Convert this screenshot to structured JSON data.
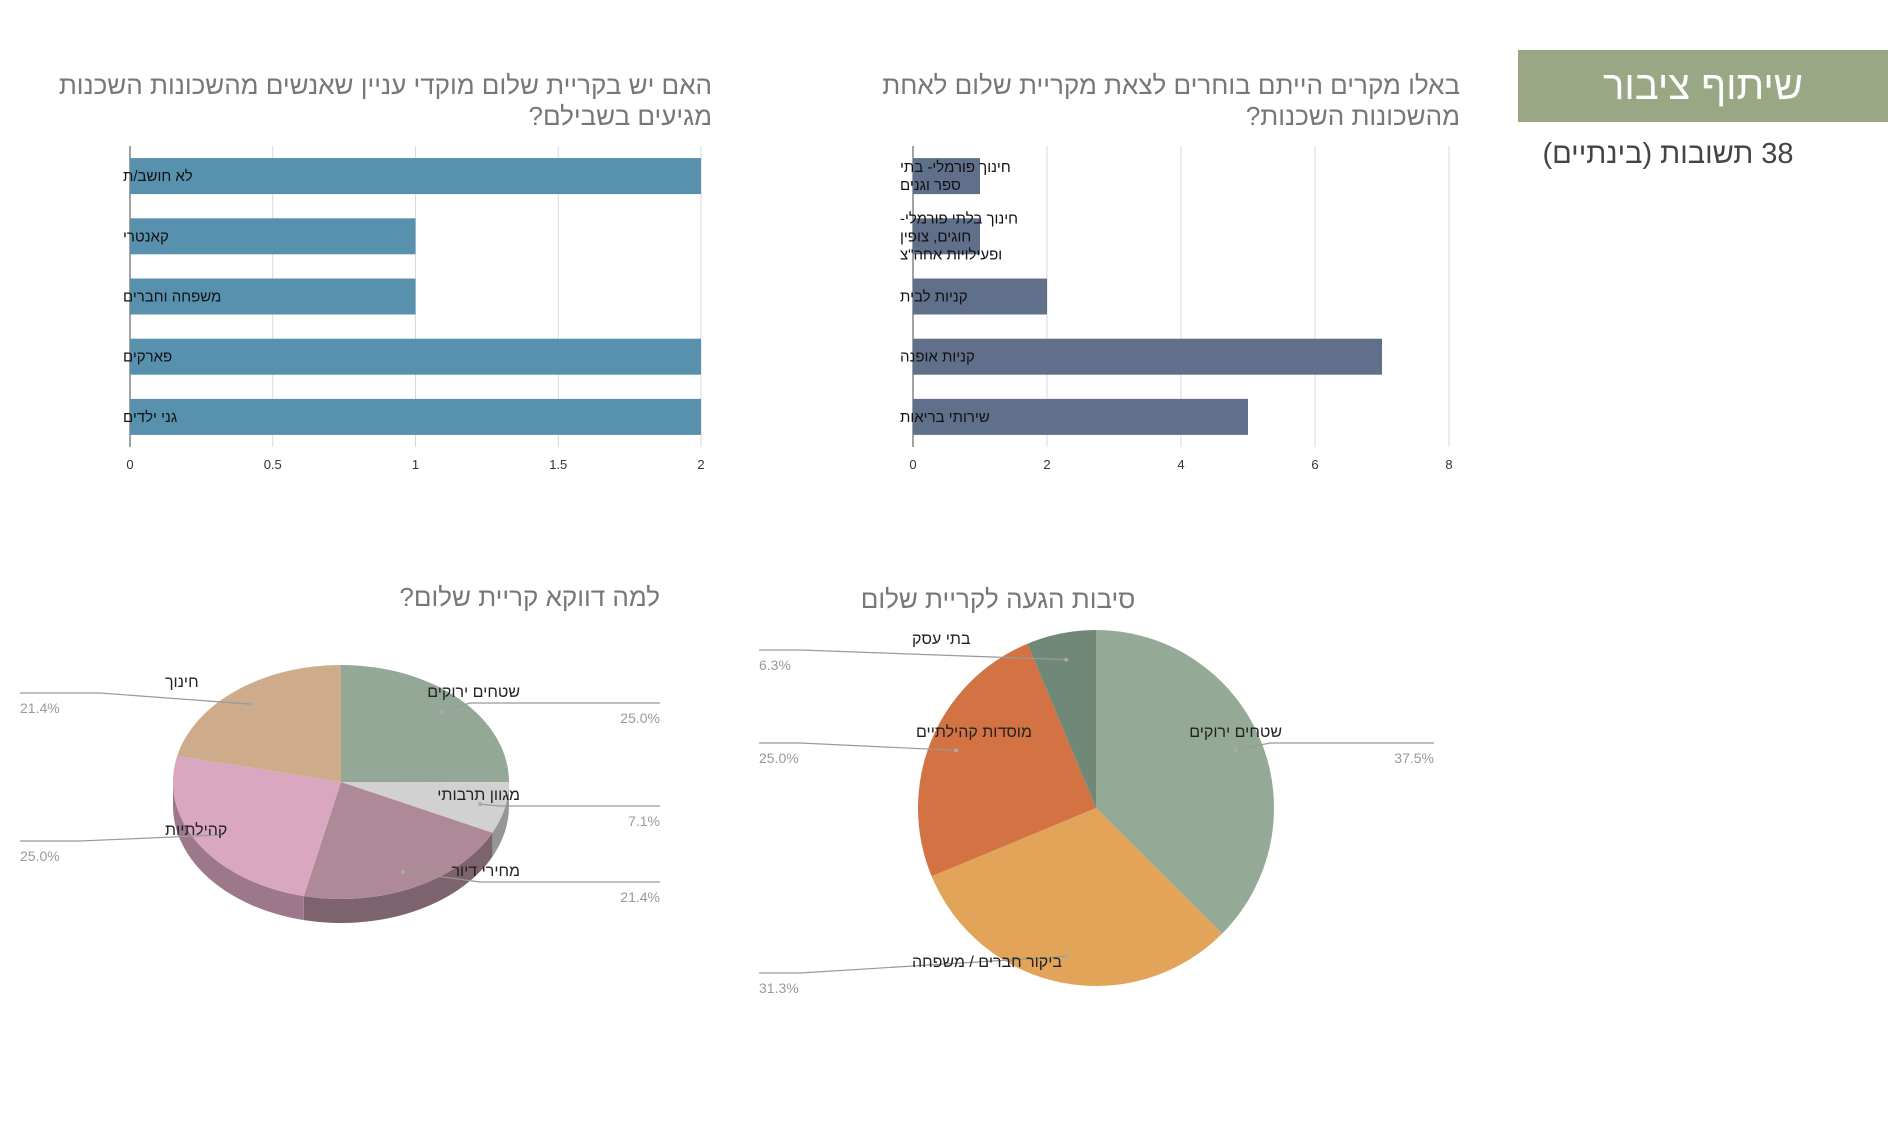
{
  "header": {
    "banner": "שיתוף ציבור",
    "responses": "38 תשובות (בינתיים)"
  },
  "colors": {
    "banner_bg": "#9aa784",
    "bar_left": "#5891ad",
    "bar_right": "#60708b"
  },
  "chart_data": [
    {
      "type": "bar",
      "orientation": "horizontal",
      "title": "האם יש בקריית שלום מוקדי עניין שאנשים מהשכונות השכנות מגיעים בשבילם?",
      "categories": [
        "לא חושב/ת",
        "קאנטרי",
        "משפחה וחברים",
        "פארקים",
        "גני ילדים"
      ],
      "values": [
        2,
        1,
        1,
        2,
        2
      ],
      "xlim": [
        0,
        2
      ],
      "xticks": [
        "0",
        "0.5",
        "1",
        "1.5",
        "2"
      ],
      "grid": true,
      "color": "#5891ad"
    },
    {
      "type": "bar",
      "orientation": "horizontal",
      "title": "באלו מקרים הייתם בוחרים לצאת מקריית שלום לאחת מהשכונות השכנות?",
      "categories": [
        "חינוך פורמלי- בתי ספר וגנים",
        "חינוך בלתי פורמלי- חוגים, צופין ופעילויות אחה\"צ",
        "קניות לבית",
        "קניות אופנה",
        "שירותי בריאות"
      ],
      "values": [
        1,
        1,
        2,
        7,
        5
      ],
      "xlim": [
        0,
        8
      ],
      "xticks": [
        "0",
        "2",
        "4",
        "6",
        "8"
      ],
      "grid": true,
      "color": "#60708b"
    },
    {
      "type": "pie",
      "style": "3d",
      "title": "למה דווקא קריית שלום?",
      "slices": [
        {
          "label": "שטחים ירוקים",
          "value": 25.0,
          "display": "25.0%",
          "color": "#93a896"
        },
        {
          "label": "מגוון תרבותי",
          "value": 7.1,
          "display": "7.1%",
          "color": "#d1d1d1"
        },
        {
          "label": "מחירי דיור",
          "value": 21.4,
          "display": "21.4%",
          "color": "#ae8a98"
        },
        {
          "label": "קהילתיות",
          "value": 25.0,
          "display": "25.0%",
          "color": "#d9a7c0"
        },
        {
          "label": "חינוך",
          "value": 21.4,
          "display": "21.4%",
          "color": "#ceac8b"
        }
      ]
    },
    {
      "type": "pie",
      "title": "סיבות הגעה לקריית שלום",
      "slices": [
        {
          "label": "שטחים ירוקים",
          "value": 37.5,
          "display": "37.5%",
          "color": "#94aa97"
        },
        {
          "label": "ביקור חברים / משפחה",
          "value": 31.3,
          "display": "31.3%",
          "color": "#e1a459"
        },
        {
          "label": "מוסדות קהילתיים",
          "value": 25.0,
          "display": "25.0%",
          "color": "#d37242"
        },
        {
          "label": "בתי עסק",
          "value": 6.3,
          "display": "6.3%",
          "color": "#6f8877"
        }
      ]
    }
  ]
}
